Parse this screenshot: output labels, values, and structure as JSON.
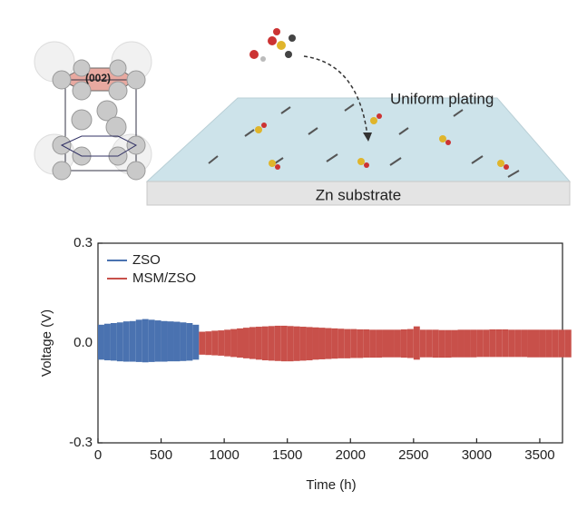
{
  "diagram": {
    "plane_label": "(002)",
    "plating_label": "Uniform plating",
    "substrate_label": "Zn substrate"
  },
  "chart_data": {
    "type": "range",
    "x_label": "Time (h)",
    "y_label": "Voltage (V)",
    "xlim": [
      0,
      3680
    ],
    "ylim": [
      -0.3,
      0.3
    ],
    "xticks": [
      0,
      500,
      1000,
      1500,
      2000,
      2500,
      3000,
      3500
    ],
    "yticks": [
      0.3,
      {
        "value": 0,
        "label": "0.0"
      },
      -0.3
    ],
    "legend": "upper left",
    "series": [
      {
        "name": "ZSO",
        "color": "#4a72b0",
        "x": [
          0,
          50,
          100,
          150,
          200,
          250,
          300,
          350,
          400,
          450,
          500,
          550,
          600,
          650,
          700,
          750
        ],
        "high": [
          0.055,
          0.058,
          0.06,
          0.062,
          0.065,
          0.066,
          0.07,
          0.072,
          0.07,
          0.068,
          0.066,
          0.065,
          0.064,
          0.062,
          0.06,
          0.055
        ],
        "low": [
          -0.05,
          -0.052,
          -0.053,
          -0.055,
          -0.056,
          -0.056,
          -0.057,
          -0.058,
          -0.057,
          -0.056,
          -0.056,
          -0.055,
          -0.055,
          -0.054,
          -0.053,
          -0.05
        ]
      },
      {
        "name": "MSM/ZSO",
        "color": "#c8504a",
        "x": [
          800,
          850,
          900,
          950,
          1000,
          1050,
          1100,
          1150,
          1200,
          1250,
          1300,
          1350,
          1400,
          1450,
          1500,
          1550,
          1600,
          1650,
          1700,
          1750,
          1800,
          1850,
          1900,
          1950,
          2000,
          2050,
          2100,
          2150,
          2200,
          2250,
          2300,
          2350,
          2400,
          2450,
          2500,
          2550,
          2600,
          2650,
          2700,
          2750,
          2800,
          2850,
          2900,
          2950,
          3000,
          3050,
          3100,
          3150,
          3200,
          3250,
          3300,
          3350,
          3400,
          3450,
          3500,
          3550,
          3600,
          3650,
          3700
        ],
        "high": [
          0.034,
          0.035,
          0.037,
          0.038,
          0.04,
          0.042,
          0.044,
          0.046,
          0.048,
          0.049,
          0.05,
          0.051,
          0.052,
          0.052,
          0.051,
          0.05,
          0.049,
          0.048,
          0.047,
          0.046,
          0.045,
          0.044,
          0.043,
          0.042,
          0.042,
          0.041,
          0.041,
          0.04,
          0.04,
          0.04,
          0.04,
          0.04,
          0.041,
          0.042,
          0.05,
          0.04,
          0.04,
          0.04,
          0.039,
          0.039,
          0.039,
          0.04,
          0.04,
          0.04,
          0.04,
          0.04,
          0.041,
          0.041,
          0.041,
          0.04,
          0.04,
          0.04,
          0.04,
          0.04,
          0.04,
          0.04,
          0.04,
          0.04,
          0.04
        ],
        "low": [
          -0.035,
          -0.036,
          -0.037,
          -0.038,
          -0.04,
          -0.042,
          -0.044,
          -0.046,
          -0.048,
          -0.05,
          -0.052,
          -0.053,
          -0.054,
          -0.055,
          -0.055,
          -0.054,
          -0.053,
          -0.052,
          -0.05,
          -0.049,
          -0.048,
          -0.047,
          -0.046,
          -0.046,
          -0.045,
          -0.045,
          -0.044,
          -0.044,
          -0.044,
          -0.043,
          -0.043,
          -0.043,
          -0.044,
          -0.045,
          -0.05,
          -0.043,
          -0.043,
          -0.044,
          -0.044,
          -0.044,
          -0.043,
          -0.043,
          -0.043,
          -0.043,
          -0.042,
          -0.042,
          -0.042,
          -0.042,
          -0.042,
          -0.042,
          -0.042,
          -0.042,
          -0.043,
          -0.043,
          -0.043,
          -0.043,
          -0.043,
          -0.043,
          -0.043
        ]
      }
    ]
  }
}
